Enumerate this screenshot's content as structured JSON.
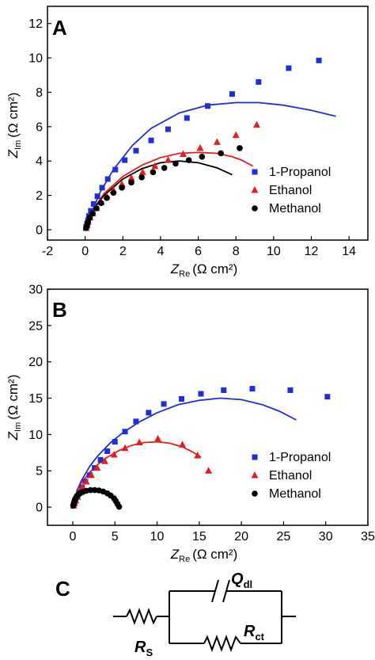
{
  "chart_data": [
    {
      "panel_label": "A",
      "type": "scatter",
      "xlabel": "Z",
      "xlabel_sub": "Re",
      "xlabel_unit": "(Ω cm²)",
      "ylabel": "Z",
      "ylabel_sub": "Im",
      "ylabel_unit": "(Ω cm²)",
      "xlim": [
        -2,
        15
      ],
      "ylim": [
        -0.6,
        13
      ],
      "xticks": [
        -2,
        0,
        2,
        4,
        6,
        8,
        10,
        12,
        14
      ],
      "yticks": [
        0,
        2,
        4,
        6,
        8,
        10,
        12
      ],
      "legend_position": "right",
      "series": [
        {
          "name": "1-Propanol",
          "marker": "square",
          "color": "#1f2ed6",
          "x": [
            0.05,
            0.1,
            0.15,
            0.2,
            0.3,
            0.45,
            0.65,
            0.9,
            1.2,
            1.6,
            2.1,
            2.7,
            3.5,
            4.4,
            5.4,
            6.5,
            7.8,
            9.2,
            10.8,
            12.4
          ],
          "y": [
            0.15,
            0.35,
            0.55,
            0.8,
            1.1,
            1.5,
            1.95,
            2.45,
            2.95,
            3.5,
            4.05,
            4.6,
            5.2,
            5.85,
            6.5,
            7.2,
            7.9,
            8.6,
            9.4,
            9.85
          ],
          "fit_x": [
            0,
            0.3,
            0.8,
            1.5,
            2.5,
            3.5,
            5,
            6.5,
            8,
            9.2,
            10.5,
            12,
            13.3
          ],
          "fit_y": [
            0,
            0.9,
            2.2,
            3.5,
            4.9,
            5.9,
            6.8,
            7.25,
            7.4,
            7.4,
            7.25,
            6.95,
            6.6
          ]
        },
        {
          "name": "Ethanol",
          "marker": "triangle",
          "color": "#e02020",
          "x": [
            0.05,
            0.1,
            0.15,
            0.25,
            0.4,
            0.6,
            0.85,
            1.15,
            1.5,
            1.95,
            2.45,
            3.05,
            3.7,
            4.4,
            5.2,
            6.1,
            7.0,
            8.0,
            9.1
          ],
          "y": [
            0.1,
            0.25,
            0.45,
            0.7,
            0.95,
            1.25,
            1.6,
            1.95,
            2.3,
            2.65,
            3.0,
            3.35,
            3.7,
            4.05,
            4.4,
            4.75,
            5.1,
            5.5,
            6.1
          ],
          "fit_x": [
            0,
            0.5,
            1,
            2,
            3,
            4,
            5,
            6,
            7,
            7.8,
            8.3,
            8.9
          ],
          "fit_y": [
            0,
            1.3,
            2.1,
            3.1,
            3.75,
            4.2,
            4.45,
            4.5,
            4.45,
            4.25,
            4.05,
            3.7
          ]
        },
        {
          "name": "Methanol",
          "marker": "circle",
          "color": "#000000",
          "x": [
            0.05,
            0.1,
            0.15,
            0.25,
            0.4,
            0.6,
            0.85,
            1.15,
            1.5,
            1.95,
            2.45,
            3.0,
            3.6,
            4.2,
            4.8,
            5.5,
            6.2,
            7.2,
            8.2
          ],
          "y": [
            0.1,
            0.25,
            0.45,
            0.7,
            0.95,
            1.25,
            1.55,
            1.85,
            2.15,
            2.45,
            2.75,
            3.05,
            3.35,
            3.6,
            3.85,
            4.05,
            4.25,
            4.45,
            4.75
          ],
          "fit_x": [
            0,
            0.5,
            1,
            2,
            3,
            4,
            5,
            6,
            7,
            7.8
          ],
          "fit_y": [
            0,
            1.3,
            2.0,
            2.95,
            3.55,
            3.9,
            4.0,
            3.9,
            3.6,
            3.2
          ]
        }
      ]
    },
    {
      "panel_label": "B",
      "type": "scatter",
      "xlabel": "Z",
      "xlabel_sub": "Re",
      "xlabel_unit": "(Ω cm²)",
      "ylabel": "Z",
      "ylabel_sub": "Im",
      "ylabel_unit": "(Ω cm²)",
      "xlim": [
        -3,
        35
      ],
      "ylim": [
        -2.5,
        30
      ],
      "xticks": [
        0,
        5,
        10,
        15,
        20,
        25,
        30,
        35
      ],
      "yticks": [
        0,
        5,
        10,
        15,
        20,
        25,
        30
      ],
      "legend_position": "right",
      "series": [
        {
          "name": "1-Propanol",
          "marker": "square",
          "color": "#1f2ed6",
          "x": [
            0.1,
            0.2,
            0.35,
            0.55,
            0.8,
            1.1,
            1.5,
            2.0,
            2.6,
            3.3,
            4.1,
            5.0,
            6.2,
            7.5,
            9.0,
            10.8,
            12.9,
            15.2,
            17.9,
            21.3,
            25.8,
            30.2
          ],
          "y": [
            0.2,
            0.5,
            0.9,
            1.4,
            2.0,
            2.7,
            3.5,
            4.4,
            5.4,
            6.5,
            7.7,
            9.0,
            10.4,
            11.8,
            13.0,
            14.2,
            14.9,
            15.6,
            16.1,
            16.3,
            16.1,
            15.2
          ],
          "fit_x": [
            0,
            0.5,
            1,
            2,
            3,
            4.5,
            6,
            8,
            10,
            12.5,
            15,
            17.5,
            20,
            22.5,
            24.5,
            26.5
          ],
          "fit_y": [
            0,
            2.3,
            3.6,
            5.6,
            7.1,
            8.9,
            10.3,
            11.8,
            13.0,
            14.1,
            14.7,
            15.0,
            14.8,
            14.1,
            13.2,
            12.0
          ]
        },
        {
          "name": "Ethanol",
          "marker": "triangle",
          "color": "#e02020",
          "x": [
            0.1,
            0.2,
            0.35,
            0.55,
            0.8,
            1.15,
            1.6,
            2.2,
            2.9,
            3.8,
            4.9,
            6.2,
            7.9,
            10.1,
            13.0,
            14.8,
            16.1
          ],
          "y": [
            0.2,
            0.5,
            0.9,
            1.4,
            2.0,
            2.7,
            3.5,
            4.4,
            5.4,
            6.3,
            7.2,
            8.1,
            8.9,
            9.4,
            8.6,
            7.1,
            5.0
          ],
          "fit_x": [
            0,
            0.5,
            1,
            2,
            3,
            4,
            5.5,
            7,
            8.5,
            10,
            11.5,
            13,
            14.2,
            15.2
          ],
          "fit_y": [
            0,
            2.2,
            3.3,
            4.8,
            5.9,
            6.8,
            7.8,
            8.5,
            8.9,
            9.0,
            8.8,
            8.3,
            7.6,
            6.9
          ]
        },
        {
          "name": "Methanol",
          "marker": "circle",
          "color": "#000000",
          "x": [
            0.05,
            0.1,
            0.15,
            0.2,
            0.25,
            0.3,
            0.4,
            0.5,
            0.7,
            0.9,
            1.2,
            1.6,
            2.1,
            2.6,
            3.1,
            3.6,
            4.1,
            4.5,
            4.9,
            5.1,
            5.3,
            5.5
          ],
          "y": [
            0.2,
            0.4,
            0.6,
            0.8,
            1.0,
            1.15,
            1.35,
            1.55,
            1.75,
            1.95,
            2.1,
            2.25,
            2.35,
            2.35,
            2.3,
            2.15,
            1.9,
            1.6,
            1.2,
            0.85,
            0.45,
            0.05
          ],
          "fit_x": [],
          "fit_y": []
        }
      ]
    }
  ],
  "circuit": {
    "panel_label": "C",
    "rs_label": "R",
    "rs_sub": "S",
    "qdl_label": "Q",
    "qdl_sub": "dl",
    "rct_label": "R",
    "rct_sub": "ct"
  }
}
